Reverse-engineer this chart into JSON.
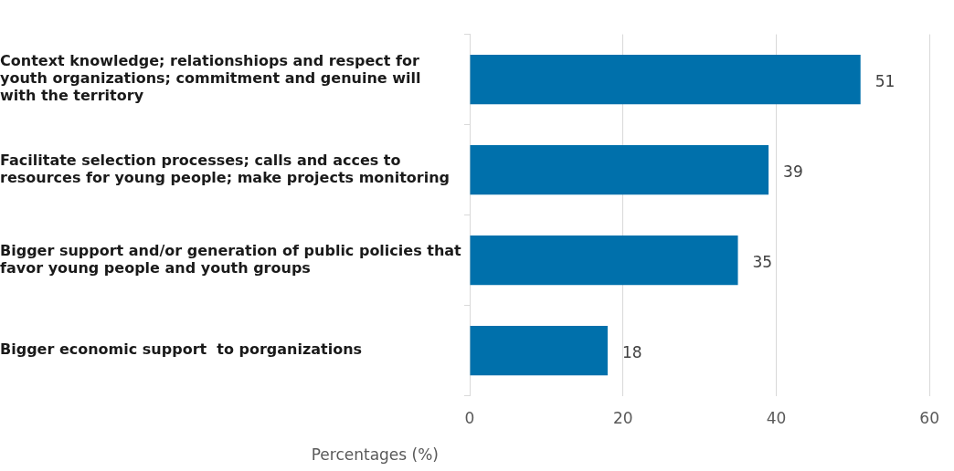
{
  "chart_data": {
    "type": "bar",
    "orientation": "horizontal",
    "categories": [
      "Context knowledge; relationshiops and respect for youth organizations; commitment and genuine will with the territory",
      "Facilitate selection processes; calls and acces to resources for young people; make projects monitoring",
      "Bigger support and/or generation of public policies that favor young people and youth groups",
      "Bigger economic support  to porganizations"
    ],
    "values": [
      51,
      39,
      35,
      18
    ],
    "color": "#0070ab",
    "xlim": [
      0,
      60
    ],
    "xticks": [
      0,
      20,
      40,
      60
    ],
    "xlabel": "Percentages (%)",
    "data_labels": true,
    "grid": "x",
    "legend": false
  }
}
